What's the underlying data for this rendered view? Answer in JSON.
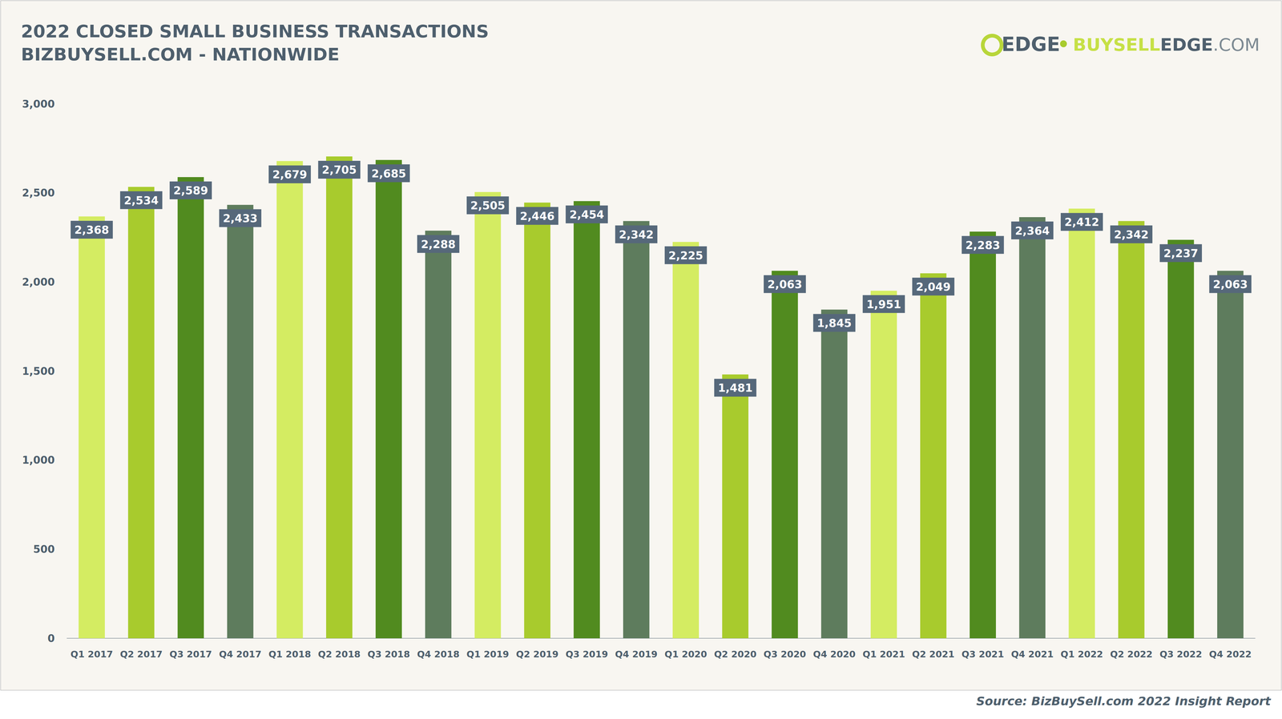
{
  "chart_data": {
    "type": "bar",
    "title": "2022 CLOSED SMALL BUSINESS TRANSACTIONS",
    "subtitle": "BIZBUYSELL.COM - NATIONWIDE",
    "annotations": [
      "EDGE",
      "•",
      "BUYSELLEDGE.COM",
      "Source: BizBuySell.com 2022 Insight Report"
    ],
    "categories": [
      "Q1 2017",
      "Q2 2017",
      "Q3 2017",
      "Q4 2017",
      "Q1 2018",
      "Q2 2018",
      "Q3 2018",
      "Q4 2018",
      "Q1 2019",
      "Q2 2019",
      "Q3 2019",
      "Q4 2019",
      "Q1 2020",
      "Q2 2020",
      "Q3 2020",
      "Q4 2020",
      "Q1 2021",
      "Q2 2021",
      "Q3 2021",
      "Q4 2021",
      "Q1 2022",
      "Q2 2022",
      "Q3 2022",
      "Q4 2022"
    ],
    "values": [
      2368,
      2534,
      2589,
      2433,
      2679,
      2705,
      2685,
      2288,
      2505,
      2446,
      2454,
      2342,
      2225,
      1481,
      2063,
      1845,
      1951,
      2049,
      2283,
      2364,
      2412,
      2342,
      2237,
      2063
    ],
    "value_labels": [
      "2,368",
      "2,534",
      "2,589",
      "2,433",
      "2,679",
      "2,705",
      "2,685",
      "2,288",
      "2,505",
      "2,446",
      "2,454",
      "2,342",
      "2,225",
      "1,481",
      "2,063",
      "1,845",
      "1,951",
      "2,049",
      "2,283",
      "2,364",
      "2,412",
      "2,342",
      "2,237",
      "2,063"
    ],
    "colors": [
      "#d4ec62",
      "#a8cb2d",
      "#518b1f",
      "#5e7c5d",
      "#d4ec62",
      "#a8cb2d",
      "#518b1f",
      "#5e7c5d",
      "#d4ec62",
      "#a8cb2d",
      "#518b1f",
      "#5e7c5d",
      "#d4ec62",
      "#a8cb2d",
      "#518b1f",
      "#5e7c5d",
      "#d4ec62",
      "#a8cb2d",
      "#518b1f",
      "#5e7c5d",
      "#d4ec62",
      "#a8cb2d",
      "#518b1f",
      "#5e7c5d"
    ],
    "ylim": [
      0,
      3000
    ],
    "yticks": [
      0,
      500,
      {
        "value": 1000,
        "label": "1,000"
      },
      {
        "value": 1500,
        "label": "1,500"
      },
      {
        "value": 2000,
        "label": "2,000"
      },
      {
        "value": 2500,
        "label": "2,500"
      },
      {
        "value": 3000,
        "label": "3,000"
      }
    ],
    "grid": false,
    "data_labels": true,
    "tick_labels": true
  }
}
